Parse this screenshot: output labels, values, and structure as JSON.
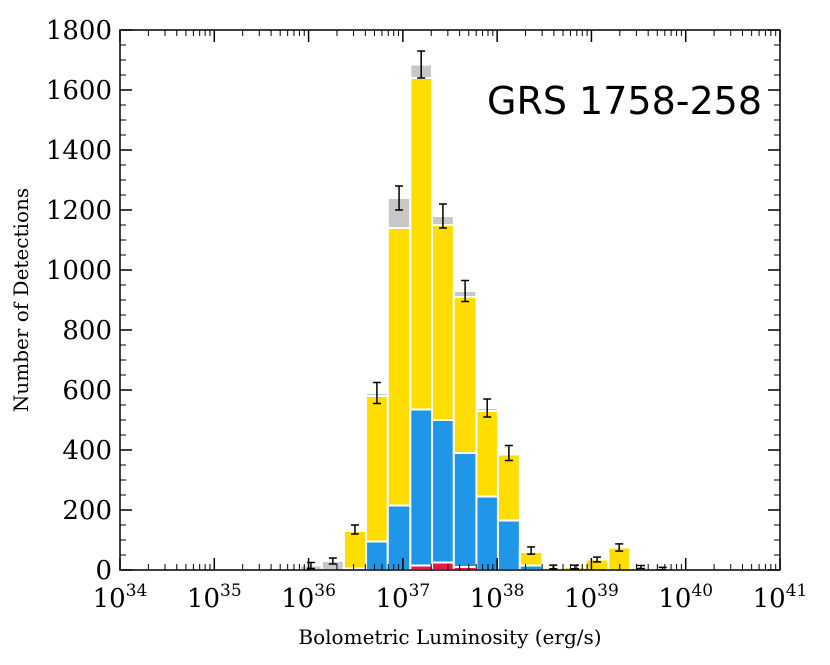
{
  "chart_data": {
    "type": "histogram",
    "xlabel": "Bolometric Luminosity (erg/s)",
    "ylabel": "Number of Detections",
    "annotation": "GRS 1758-258",
    "xscale": "log",
    "xlim": [
      1e+34,
      1e+41
    ],
    "xticks": [
      {
        "value": 1e+34,
        "label": "10",
        "exponent": "34"
      },
      {
        "value": 1e+35,
        "label": "10",
        "exponent": "35"
      },
      {
        "value": 1e+36,
        "label": "10",
        "exponent": "36"
      },
      {
        "value": 1e+37,
        "label": "10",
        "exponent": "37"
      },
      {
        "value": 1e+38,
        "label": "10",
        "exponent": "38"
      },
      {
        "value": 1e+39,
        "label": "10",
        "exponent": "39"
      },
      {
        "value": 1e+40,
        "label": "10",
        "exponent": "40"
      },
      {
        "value": 1e+41,
        "label": "10",
        "exponent": "41"
      }
    ],
    "ylim": [
      0,
      1800
    ],
    "yticks": [
      0,
      200,
      400,
      600,
      800,
      1000,
      1200,
      1400,
      1600,
      1800
    ],
    "bins": [
      8.13e+35,
      1.38e+36,
      2.37e+36,
      4.07e+36,
      6.92e+36,
      1.2e+37,
      2.04e+37,
      3.47e+37,
      6.03e+37,
      1.02e+38,
      1.74e+38,
      3.02e+38,
      5.13e+38,
      8.71e+38,
      1.51e+39,
      2.57e+39,
      4.37e+39,
      7.41e+39
    ],
    "series": [
      {
        "color": "#e8194a",
        "values": [
          0,
          0,
          0,
          0,
          0,
          15,
          25,
          10,
          0,
          0,
          0,
          0,
          0,
          0,
          0,
          0,
          0
        ]
      },
      {
        "color": "#1f96e8",
        "values": [
          0,
          0,
          5,
          95,
          215,
          520,
          475,
          380,
          245,
          165,
          15,
          0,
          0,
          0,
          0,
          0,
          0
        ]
      },
      {
        "color": "#ffdd00",
        "values": [
          0,
          0,
          125,
          485,
          925,
          1105,
          650,
          520,
          285,
          220,
          45,
          8,
          10,
          35,
          75,
          5,
          2
        ]
      },
      {
        "color": "#c8c8c8",
        "values": [
          15,
          30,
          5,
          10,
          100,
          45,
          30,
          20,
          10,
          5,
          5,
          2,
          0,
          0,
          0,
          5,
          3
        ]
      }
    ],
    "errors": [
      10,
      10,
      15,
      35,
      40,
      45,
      40,
      35,
      30,
      25,
      12,
      6,
      6,
      8,
      12,
      5,
      4
    ]
  }
}
